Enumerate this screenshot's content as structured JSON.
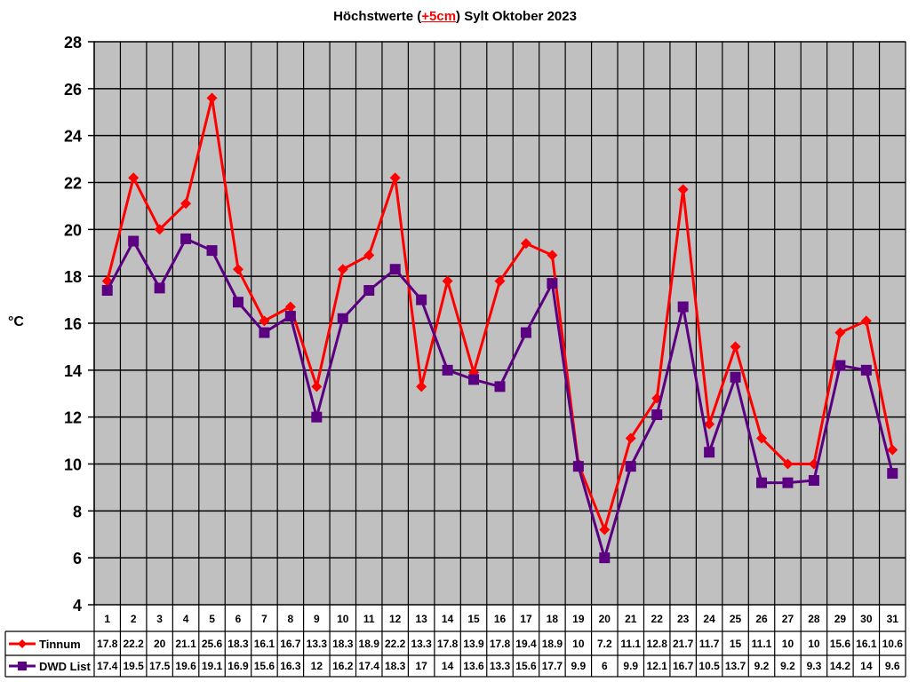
{
  "chart_data": {
    "type": "line",
    "title": "Höchstwerte (+5cm) Sylt Oktober 2023",
    "title_parts": {
      "before": "Höchstwerte (",
      "highlight": "+5cm",
      "after": ") Sylt Oktober 2023"
    },
    "xlabel": "",
    "ylabel": "°C",
    "ylim": [
      4,
      28
    ],
    "yticks": [
      4,
      6,
      8,
      10,
      12,
      14,
      16,
      18,
      20,
      22,
      24,
      26,
      28
    ],
    "grid": true,
    "legend_position": "bottom-table",
    "categories": [
      "1",
      "2",
      "3",
      "4",
      "5",
      "6",
      "7",
      "8",
      "9",
      "10",
      "11",
      "12",
      "13",
      "14",
      "15",
      "16",
      "17",
      "18",
      "19",
      "20",
      "21",
      "22",
      "23",
      "24",
      "25",
      "26",
      "27",
      "28",
      "29",
      "30",
      "31"
    ],
    "series": [
      {
        "name": "Tinnum",
        "color": "#ff0000",
        "marker": "diamond",
        "values": [
          17.8,
          22.2,
          20,
          21.1,
          25.6,
          18.3,
          16.1,
          16.7,
          13.3,
          18.3,
          18.9,
          22.2,
          13.3,
          17.8,
          13.9,
          17.8,
          19.4,
          18.9,
          10,
          7.2,
          11.1,
          12.8,
          21.7,
          11.7,
          15,
          11.1,
          10,
          10,
          15.6,
          16.1,
          10.6
        ]
      },
      {
        "name": "DWD List",
        "color": "#5a0080",
        "marker": "square",
        "values": [
          17.4,
          19.5,
          17.5,
          19.6,
          19.1,
          16.9,
          15.6,
          16.3,
          12,
          16.2,
          17.4,
          18.3,
          17,
          14,
          13.6,
          13.3,
          15.6,
          17.7,
          9.9,
          6,
          9.9,
          12.1,
          16.7,
          10.5,
          13.7,
          9.2,
          9.2,
          9.3,
          14.2,
          14,
          9.6
        ]
      }
    ]
  },
  "colors": {
    "plot_background": "#c0c0c0",
    "grid": "#000000"
  }
}
